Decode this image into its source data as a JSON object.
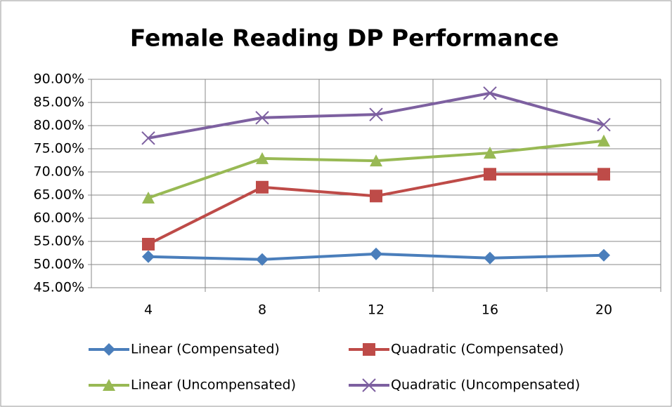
{
  "chart_data": {
    "type": "line",
    "title": "Female Reading DP Performance",
    "categories": [
      4,
      8,
      12,
      16,
      20
    ],
    "series": [
      {
        "name": "Linear (Compensated)",
        "color": "#4a7ebb",
        "marker": "diamond",
        "values": [
          51.7,
          51.1,
          52.3,
          51.4,
          52.0
        ]
      },
      {
        "name": "Quadratic (Compensated)",
        "color": "#be4b48",
        "marker": "square",
        "values": [
          54.4,
          66.7,
          64.8,
          69.5,
          69.5
        ]
      },
      {
        "name": "Linear (Uncompensated)",
        "color": "#98b954",
        "marker": "triangle",
        "values": [
          64.4,
          72.9,
          72.4,
          74.1,
          76.7
        ]
      },
      {
        "name": "Quadratic (Uncompensated)",
        "color": "#7d60a0",
        "marker": "x",
        "values": [
          77.3,
          81.7,
          82.4,
          87.0,
          80.2
        ]
      }
    ],
    "ylim": [
      45,
      90
    ],
    "yticks": [
      {
        "value": 45,
        "label": "45.00%"
      },
      {
        "value": 50,
        "label": "50.00%"
      },
      {
        "value": 55,
        "label": "55.00%"
      },
      {
        "value": 60,
        "label": "60.00%"
      },
      {
        "value": 65,
        "label": "65.00%"
      },
      {
        "value": 70,
        "label": "70.00%"
      },
      {
        "value": 75,
        "label": "75.00%"
      },
      {
        "value": 80,
        "label": "80.00%"
      },
      {
        "value": 85,
        "label": "85.00%"
      },
      {
        "value": 90,
        "label": "90.00%"
      }
    ],
    "grid": true,
    "legend": "bottom"
  }
}
